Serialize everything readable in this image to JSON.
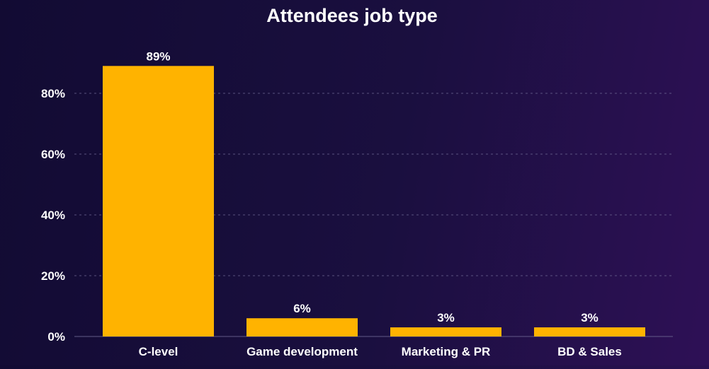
{
  "chart_data": {
    "type": "bar",
    "title": "Attendees job type",
    "categories": [
      "C-level",
      "Game development",
      "Marketing & PR",
      "BD & Sales"
    ],
    "values": [
      89,
      6,
      3,
      3
    ],
    "data_labels": [
      "89%",
      "6%",
      "3%",
      "3%"
    ],
    "xlabel": "",
    "ylabel": "",
    "ylim": [
      0,
      100
    ],
    "yticks": [
      0,
      20,
      40,
      60,
      80
    ],
    "ytick_labels": [
      "0%",
      "20%",
      "40%",
      "60%",
      "80%"
    ],
    "grid": true,
    "legend": "none",
    "colors": {
      "bar": "#ffb300",
      "text": "#ffffff",
      "grid": "#6a6490"
    }
  }
}
